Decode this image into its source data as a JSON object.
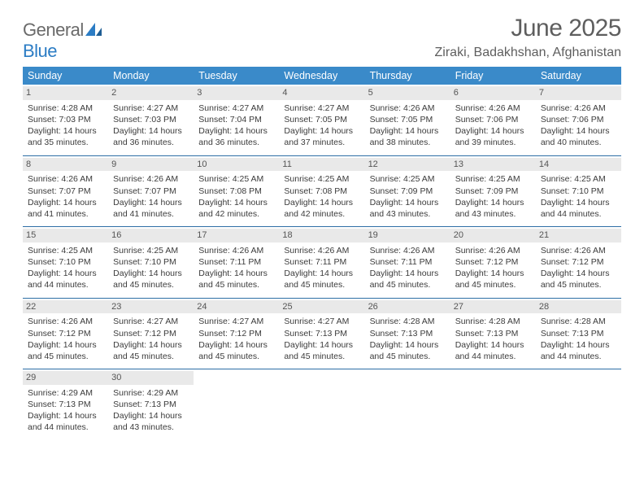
{
  "brand": {
    "name_gray": "General",
    "name_blue": "Blue"
  },
  "title": "June 2025",
  "location": "Ziraki, Badakhshan, Afghanistan",
  "colors": {
    "header_bg": "#3a8ac9",
    "header_text": "#ffffff",
    "daynum_bg": "#e9e9e9",
    "separator": "#2d6ea5",
    "logo_blue": "#2b7cc4",
    "text_gray": "#5e5e5e",
    "body_text": "#3b3b3b"
  },
  "layout": {
    "cols": 7,
    "rows": 5,
    "font_size_body": 10.5,
    "font_size_title": 30
  },
  "weekdays": [
    "Sunday",
    "Monday",
    "Tuesday",
    "Wednesday",
    "Thursday",
    "Friday",
    "Saturday"
  ],
  "weeks": [
    [
      {
        "n": "1",
        "sr": "Sunrise: 4:28 AM",
        "ss": "Sunset: 7:03 PM",
        "d1": "Daylight: 14 hours",
        "d2": "and 35 minutes."
      },
      {
        "n": "2",
        "sr": "Sunrise: 4:27 AM",
        "ss": "Sunset: 7:03 PM",
        "d1": "Daylight: 14 hours",
        "d2": "and 36 minutes."
      },
      {
        "n": "3",
        "sr": "Sunrise: 4:27 AM",
        "ss": "Sunset: 7:04 PM",
        "d1": "Daylight: 14 hours",
        "d2": "and 36 minutes."
      },
      {
        "n": "4",
        "sr": "Sunrise: 4:27 AM",
        "ss": "Sunset: 7:05 PM",
        "d1": "Daylight: 14 hours",
        "d2": "and 37 minutes."
      },
      {
        "n": "5",
        "sr": "Sunrise: 4:26 AM",
        "ss": "Sunset: 7:05 PM",
        "d1": "Daylight: 14 hours",
        "d2": "and 38 minutes."
      },
      {
        "n": "6",
        "sr": "Sunrise: 4:26 AM",
        "ss": "Sunset: 7:06 PM",
        "d1": "Daylight: 14 hours",
        "d2": "and 39 minutes."
      },
      {
        "n": "7",
        "sr": "Sunrise: 4:26 AM",
        "ss": "Sunset: 7:06 PM",
        "d1": "Daylight: 14 hours",
        "d2": "and 40 minutes."
      }
    ],
    [
      {
        "n": "8",
        "sr": "Sunrise: 4:26 AM",
        "ss": "Sunset: 7:07 PM",
        "d1": "Daylight: 14 hours",
        "d2": "and 41 minutes."
      },
      {
        "n": "9",
        "sr": "Sunrise: 4:26 AM",
        "ss": "Sunset: 7:07 PM",
        "d1": "Daylight: 14 hours",
        "d2": "and 41 minutes."
      },
      {
        "n": "10",
        "sr": "Sunrise: 4:25 AM",
        "ss": "Sunset: 7:08 PM",
        "d1": "Daylight: 14 hours",
        "d2": "and 42 minutes."
      },
      {
        "n": "11",
        "sr": "Sunrise: 4:25 AM",
        "ss": "Sunset: 7:08 PM",
        "d1": "Daylight: 14 hours",
        "d2": "and 42 minutes."
      },
      {
        "n": "12",
        "sr": "Sunrise: 4:25 AM",
        "ss": "Sunset: 7:09 PM",
        "d1": "Daylight: 14 hours",
        "d2": "and 43 minutes."
      },
      {
        "n": "13",
        "sr": "Sunrise: 4:25 AM",
        "ss": "Sunset: 7:09 PM",
        "d1": "Daylight: 14 hours",
        "d2": "and 43 minutes."
      },
      {
        "n": "14",
        "sr": "Sunrise: 4:25 AM",
        "ss": "Sunset: 7:10 PM",
        "d1": "Daylight: 14 hours",
        "d2": "and 44 minutes."
      }
    ],
    [
      {
        "n": "15",
        "sr": "Sunrise: 4:25 AM",
        "ss": "Sunset: 7:10 PM",
        "d1": "Daylight: 14 hours",
        "d2": "and 44 minutes."
      },
      {
        "n": "16",
        "sr": "Sunrise: 4:25 AM",
        "ss": "Sunset: 7:10 PM",
        "d1": "Daylight: 14 hours",
        "d2": "and 45 minutes."
      },
      {
        "n": "17",
        "sr": "Sunrise: 4:26 AM",
        "ss": "Sunset: 7:11 PM",
        "d1": "Daylight: 14 hours",
        "d2": "and 45 minutes."
      },
      {
        "n": "18",
        "sr": "Sunrise: 4:26 AM",
        "ss": "Sunset: 7:11 PM",
        "d1": "Daylight: 14 hours",
        "d2": "and 45 minutes."
      },
      {
        "n": "19",
        "sr": "Sunrise: 4:26 AM",
        "ss": "Sunset: 7:11 PM",
        "d1": "Daylight: 14 hours",
        "d2": "and 45 minutes."
      },
      {
        "n": "20",
        "sr": "Sunrise: 4:26 AM",
        "ss": "Sunset: 7:12 PM",
        "d1": "Daylight: 14 hours",
        "d2": "and 45 minutes."
      },
      {
        "n": "21",
        "sr": "Sunrise: 4:26 AM",
        "ss": "Sunset: 7:12 PM",
        "d1": "Daylight: 14 hours",
        "d2": "and 45 minutes."
      }
    ],
    [
      {
        "n": "22",
        "sr": "Sunrise: 4:26 AM",
        "ss": "Sunset: 7:12 PM",
        "d1": "Daylight: 14 hours",
        "d2": "and 45 minutes."
      },
      {
        "n": "23",
        "sr": "Sunrise: 4:27 AM",
        "ss": "Sunset: 7:12 PM",
        "d1": "Daylight: 14 hours",
        "d2": "and 45 minutes."
      },
      {
        "n": "24",
        "sr": "Sunrise: 4:27 AM",
        "ss": "Sunset: 7:12 PM",
        "d1": "Daylight: 14 hours",
        "d2": "and 45 minutes."
      },
      {
        "n": "25",
        "sr": "Sunrise: 4:27 AM",
        "ss": "Sunset: 7:13 PM",
        "d1": "Daylight: 14 hours",
        "d2": "and 45 minutes."
      },
      {
        "n": "26",
        "sr": "Sunrise: 4:28 AM",
        "ss": "Sunset: 7:13 PM",
        "d1": "Daylight: 14 hours",
        "d2": "and 45 minutes."
      },
      {
        "n": "27",
        "sr": "Sunrise: 4:28 AM",
        "ss": "Sunset: 7:13 PM",
        "d1": "Daylight: 14 hours",
        "d2": "and 44 minutes."
      },
      {
        "n": "28",
        "sr": "Sunrise: 4:28 AM",
        "ss": "Sunset: 7:13 PM",
        "d1": "Daylight: 14 hours",
        "d2": "and 44 minutes."
      }
    ],
    [
      {
        "n": "29",
        "sr": "Sunrise: 4:29 AM",
        "ss": "Sunset: 7:13 PM",
        "d1": "Daylight: 14 hours",
        "d2": "and 44 minutes."
      },
      {
        "n": "30",
        "sr": "Sunrise: 4:29 AM",
        "ss": "Sunset: 7:13 PM",
        "d1": "Daylight: 14 hours",
        "d2": "and 43 minutes."
      },
      {
        "empty": true
      },
      {
        "empty": true
      },
      {
        "empty": true
      },
      {
        "empty": true
      },
      {
        "empty": true
      }
    ]
  ]
}
